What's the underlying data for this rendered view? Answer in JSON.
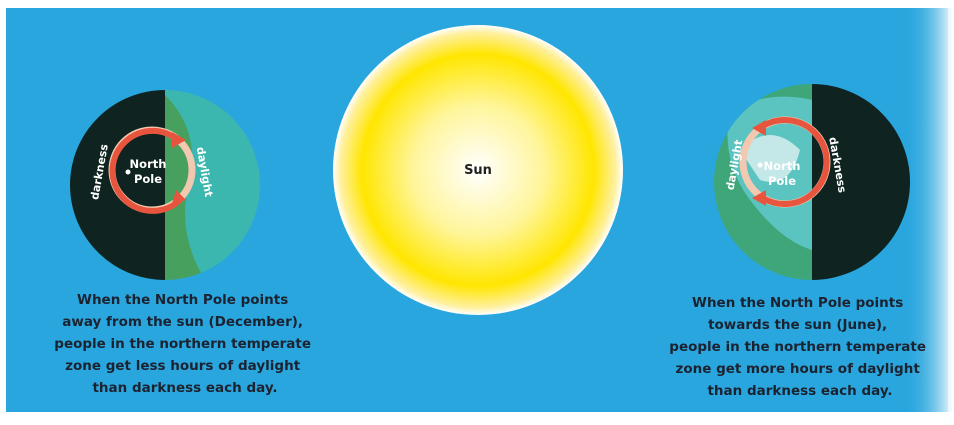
{
  "left": {
    "ring_labels": [
      "darkness",
      "daylight"
    ],
    "pole_label": [
      "North",
      "Pole"
    ],
    "caption": [
      "When the North Pole points",
      "away from the sun (December),",
      "people in the northern temperate",
      "zone get less hours of daylight",
      "than darkness each day."
    ]
  },
  "sun": {
    "label": "Sun"
  },
  "right": {
    "ring_labels": [
      "daylight",
      "darkness"
    ],
    "pole_label": [
      "North",
      "Pole"
    ],
    "caption": [
      "When the North Pole points",
      "towards the sun (June),",
      "people in the northern temperate",
      "zone get more hours of daylight",
      "than darkness each day."
    ]
  }
}
